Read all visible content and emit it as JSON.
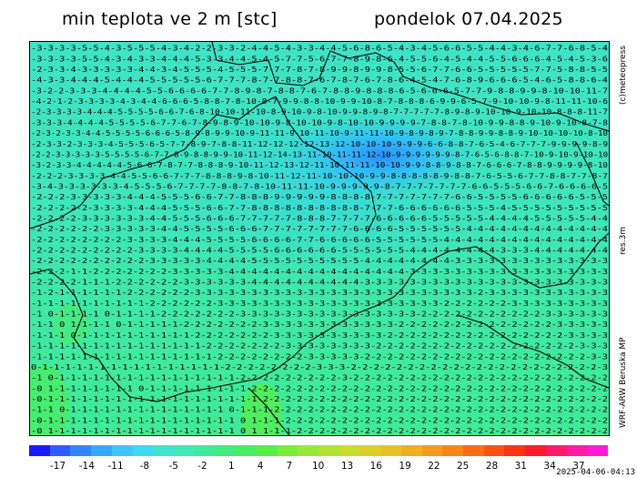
{
  "header": {
    "title": "min teplota ve 2 m [stc]",
    "date": "pondelok 07.04.2025"
  },
  "side_labels": {
    "copyright": "(c)meteopress",
    "resolution": "res.3m",
    "model": "WRF-ARW Beruska MP"
  },
  "run_timestamp": "2025-04-06-04:13",
  "colorbar": {
    "colors": [
      "#1a1aff",
      "#2d5cff",
      "#2f86ff",
      "#38a8ff",
      "#3fc4ff",
      "#3fd8f2",
      "#3fe3d2",
      "#3fe8b4",
      "#3feb98",
      "#40ec7e",
      "#4aee62",
      "#58ee46",
      "#78ee3a",
      "#94ea36",
      "#b0e430",
      "#c8dc2c",
      "#dcd028",
      "#e8c224",
      "#efb020",
      "#f39c1c",
      "#f68618",
      "#f86e14",
      "#fa5212",
      "#fc3410",
      "#fd1a2a",
      "#ff1a6c",
      "#ff1aa8",
      "#ff1ad8"
    ],
    "labels": [
      "-17",
      "-14",
      "-11",
      "-8",
      "-5",
      "-2",
      "1",
      "4",
      "7",
      "10",
      "13",
      "16",
      "19",
      "22",
      "25",
      "28",
      "31",
      "34",
      "37"
    ]
  },
  "map": {
    "scalar_colors": {
      "cold": "#2fb9ff",
      "cool": "#35cfe8",
      "mid": "#3fe3c3",
      "mild": "#3fea98",
      "warm": "#4aee62"
    },
    "field_rows": [
      "-3-3-3-3-5-5-4-3-5-5-5-4-3-4-2-2-3-3-2-4-4-5-4-3-3-4-4-5-6-8-6-5-4-3-4-5-6-6-5-5-4-4-3-4-6-7-7-6-8-5-4",
      "-3-3-3-3-5-5-4-3-4-3-3-4-4-4-5-3-3-4-4-5-4-5-7-7-5-6-7-7-8-9-8-6-4-5-5-6-4-5-4-4-5-5-6-6-6-4-5-4-5-3-6",
      "-2-3-3-4-3-3-3-3-3-4-4-3-4-5-5-5-4-5-5-5-7-7-7-8-7-8-9-9-8-9-9-8-5-5-6-7-7-6-6-5-5-5-5-5-7-7-5-8-8-5-5",
      "-4-3-3-4-4-4-5-4-4-4-5-5-5-5-5-6-7-7-7-8-7-7-8-8-7-6-7-8-7-6-7-8-6-4-5-4-7-6-8-9-6-6-6-5-4-6-5-8-8-6-4",
      "-3-2-2-3-3-3-4-4-4-4-5-5-6-6-6-6-7-7-8-9-8-7-8-8-7-6-7-8-8-9-8-8-8-6-5-6-6-6-5-7-7-9-8-8-9-9-8-10-10-11-7",
      "-4-2-1-2-3-3-3-3-4-3-4-4-6-6-6-5-8-8-7-8-10-8-7-9-9-8-8-10-9-9-10-8-7-8-8-8-6-9-9-6-5-7-9-10-10-9-8-11-11-10-6",
      "-2-3-3-3-3-4-4-4-5-5-5-5-6-6-7-6-8-10-10-11-10-8-9-10-9-8-10-9-9-8-9-8-7-7-7-7-7-8-9-8-9-10-10-9-10-10-8-8-8-11-7",
      "-3-3-3-4-4-4-4-5-5-5-5-6-7-7-6-7-8-9-8-9-10-10-9-8-10-10-9-8-10-10-9-9-9-9-7-8-8-7-8-10-9-9-8-8-9-10-9-10-8-7-8",
      "-2-3-2-3-3-4-4-5-5-5-5-6-6-6-5-8-9-8-9-9-10-9-11-11-9-10-11-10-9-11-11-10-9-8-9-8-9-7-8-8-9-9-8-8-9-10-10-10-10-8-10",
      "-2-3-3-2-3-3-3-4-5-5-5-6-5-7-7-8-9-7-8-8-11-12-12-12-12-13-12-10-10-10-9-9-9-6-6-8-8-7-6-5-4-6-7-7-7-9-9-9-9-8-9",
      "-2-2-3-3-3-3-3-5-5-5-5-6-7-7-8-9-8-8-9-9-10-11-12-14-13-11-10-11-11-12-10-9-9-9-9-9-9-8-7-6-5-6-8-8-7-10-9-10-9-10-10",
      "-3-2-3-3-4-4-4-4-4-5-6-6-7-8-7-7-8-8-8-9-10-11-12-13-12-11-10-11-11-10-10-9-9-8-8-9-8-8-7-6-6-6-7-8-8-9-9-9-9-8-10",
      "-2-2-2-3-3-3-3-4-4-5-5-6-6-7-7-7-8-8-8-9-8-10-11-12-11-10-10-10-9-9-8-8-8-8-8-9-8-8-7-6-5-5-6-7-7-8-8-7-7-8-7",
      "-3-4-3-3-3-3-3-3-4-5-5-5-6-7-7-7-7-8-8-7-8-10-11-11-10-9-9-9-9-9-8-7-7-7-7-7-7-7-6-6-5-5-5-6-6-7-6-6-6-6-5",
      "-2-2-2-3-3-3-3-3-4-4-4-5-5-5-6-6-7-7-8-8-8-9-9-9-9-9-8-8-8-8-7-7-7-7-7-7-7-6-6-5-5-5-5-6-6-6-6-6-5-5-5",
      "-2-2-2-2-2-3-3-3-3-4-4-4-5-5-5-6-6-7-7-8-8-8-8-8-8-8-8-8-8-7-7-7-6-6-6-6-6-6-5-5-5-4-5-5-5-5-5-5-5-5-5",
      "-2-2-2-2-3-3-3-3-3-3-4-4-5-5-5-6-6-6-7-7-7-7-7-8-8-8-7-7-7-7-6-6-6-6-6-5-5-5-5-5-4-4-4-4-5-5-5-5-5-4-4",
      "-2-2-2-2-2-2-3-3-3-3-3-4-4-5-5-5-5-6-6-6-7-7-7-7-7-7-7-7-6-6-6-6-5-5-5-5-5-5-4-4-4-4-4-4-4-4-4-4-4-4-4",
      "-2-2-2-2-2-2-2-2-3-3-3-3-4-4-4-5-5-5-5-6-6-6-6-7-7-6-6-6-6-6-5-5-5-5-5-5-4-4-4-4-4-4-4-4-4-4-4-4-4-4-4",
      "-2-2-2-2-2-2-2-2-2-3-3-3-3-4-4-4-4-5-5-5-5-6-6-6-6-6-6-5-5-5-5-5-5-4-4-4-4-4-4-4-4-3-3-3-4-4-4-4-4-4-4",
      "-2-2-2-2-2-2-2-2-2-2-3-3-3-3-3-4-4-4-4-5-5-5-5-5-5-5-5-5-5-4-4-4-4-4-4-4-4-3-3-3-3-3-3-3-3-3-3-3-3-3-3",
      "-2-2-2-1-1-2-2-2-2-2-2-2-3-3-3-3-3-4-4-4-4-4-4-4-4-4-4-4-4-4-4-4-4-3-3-3-3-3-3-3-3-3-3-3-3-3-3-3-3-3-3",
      "-2-2-2-2-1-1-1-2-2-2-2-2-2-3-3-3-3-3-3-4-4-4-4-4-4-4-4-4-4-3-3-3-3-3-3-3-3-3-3-3-3-3-3-3-3-3-3-3-3-3-3",
      "-1-2-1-1-1-1-1-1-2-2-2-2-2-2-3-3-3-3-3-3-3-3-3-3-3-3-3-3-3-3-3-3-3-3-3-3-3-3-3-2-3-3-3-3-3-3-3-3-3-3-3",
      "-1-1-1-1-1-1-1-1-1-1-2-2-2-2-2-2-3-3-3-3-3-3-3-3-3-3-3-3-3-3-3-3-3-3-3-3-2-2-2-2-2-2-3-3-3-3-3-3-3-3-3",
      "-1 0-1-1-1-1 0-1-1-1-1-2-2-2-2-2-2-2-3-3-3-3-3-3-3-3-3-3-3-3-3-3-3-3-2-2-2-2-2-2-2-2-2-2-2-3-3-3-3-3-3",
      "-1-1 0 1-1-1-1 0-1-1-1-1-1-2-2-2-2-2-2-2-3-3-3-3-3-3-3-3-3-3-3-3-2-2-2-2-2-2-2-2-2-2-2-2-2-2-3-3-3-3-3",
      "-1-1-1 0-1-1-1-1-1-1-1-1-1-1-2-2-2-2-2-2-2-3-3-3-3-3-3-3-3-3-3-2-2-2-2-2-2-2-2-2-2-2-2-2-2-2-2-3-3-3-3",
      "-1-1-1-1-1-1-1-1-1-1-1-1-1-1-1-2-2-2-2-2-2-2-3-3-3-3-3-3-3-3-2-2-2-2-2-2-2-2-2-2-2-2-2-2-2-2-2-2-3-3-3",
      "-1-1-1-1-1-1-1-1-1-1-1-1-1-1-1-1-2-2-2-2-2-2-2-2-3-3-3-3-3-2-2-2-2-2-2-2-2-2-2-2-2-2-2-2-2-2-2-2-2-3-3",
      " 0-1-1-1-1-1-1-1-1-1-1-1-1-1-1-1-1-2-2-2-2-2-2-2-2-3-3-3-2-2-2-2-2-2-2-2-2-2-2-2-2-2-2-2-2-2-2-2-2-2-3",
      "-1 0-1-1-1-1-1-1-1-1-1-1-1-1-1-1-1-1-2-2-2-2-2-2-2-2-2-3-2-2-2-2-2-2-2-2-2-2-2-2-2-2-2-2-2-2-2-2-2-2-2",
      "-0 1-1-1-1-1-1-1-1 0-1-1-1-1-1-1-1-1-1-2-2-2-2-2-2-2-2-2-2-2-2-2-2-2-2-2-2-2-2-2-2-2-2-2-2-2-2-2-2-2-2",
      "-0-1-1-1-1-1-1-1-1-1-1-1-1-1-1-1-1-1-1-1-2-2-2-2-2-2-2-2-2-2-2-2-2-2-2-2-2-2-2-2-2-2-2-2-2-2-2-2-2-2-2",
      "-1-1 0-1-1-1-1-1-1-1-1-1-1-1-1-1-1 0-1-1-1-2-2-2-2-2-2-2-2-2-2-2-2-2-2-2-2-2-2-2-2-2-2-2-2-2-2-2-2-2-2",
      "-0-1-1-1-1-1-1-1-1-1-1-1-1-1-1-1-1-1 0 1-1-1-2-2-2-2-2-2-2-2-2-2-2-2-2-2-2-2-2-2-2-2-2-2-2-2-2-2-2-2-2",
      "-0 1-1-1-1-1-1-1-1-1-1-1-1-1-1-1-1-1 0 1 1-1-1-2-2-2-2-2-2-2-2-2-2-2-2-2-2-2-2-2-2-2-2-2-2-2-2-2-2-2-2"
    ]
  }
}
